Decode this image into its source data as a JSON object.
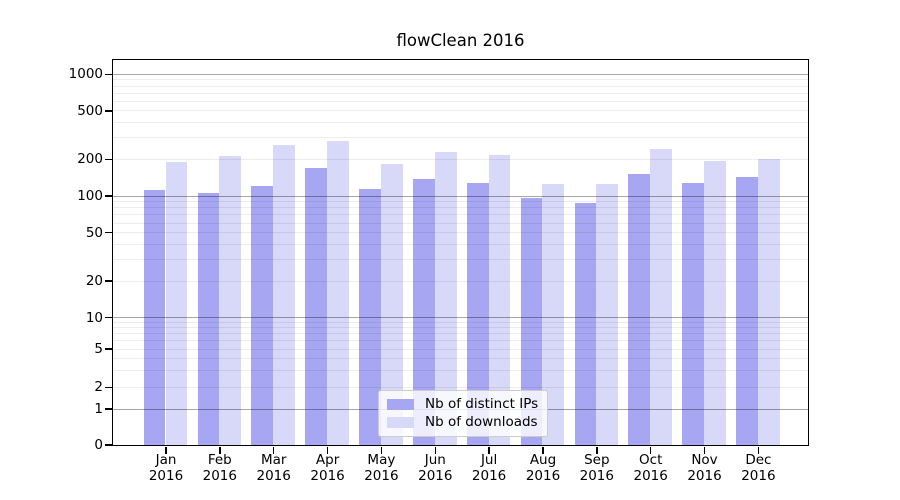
{
  "title": "flowClean 2016",
  "chart_data": {
    "type": "bar",
    "title": "flowClean 2016",
    "categories": [
      "Jan 2016",
      "Feb 2016",
      "Mar 2016",
      "Apr 2016",
      "May 2016",
      "Jun 2016",
      "Jul 2016",
      "Aug 2016",
      "Sep 2016",
      "Oct 2016",
      "Nov 2016",
      "Dec 2016"
    ],
    "month_labels": [
      "Jan",
      "Feb",
      "Mar",
      "Apr",
      "May",
      "Jun",
      "Jul",
      "Aug",
      "Sep",
      "Oct",
      "Nov",
      "Dec"
    ],
    "year_label": "2016",
    "series": [
      {
        "name": "Nb of distinct IPs",
        "color": "#a6a6f2",
        "values": [
          112,
          104,
          120,
          170,
          114,
          137,
          128,
          95,
          87,
          150,
          128,
          142
        ]
      },
      {
        "name": "Nb of downloads",
        "color": "#d8d8f8",
        "values": [
          188,
          210,
          258,
          280,
          180,
          230,
          214,
          125,
          125,
          240,
          194,
          200
        ]
      }
    ],
    "xlabel": "",
    "ylabel": "",
    "yscale": "symlog",
    "y_ticks": [
      0,
      1,
      2,
      5,
      10,
      20,
      50,
      100,
      200,
      500,
      1000
    ],
    "ylim": [
      0,
      1310
    ],
    "grid": "on",
    "grid_major_color": "rgba(0,0,0,0.35)",
    "grid_minor_color": "rgba(0,0,0,0.07)",
    "legend_position": "lower center"
  }
}
